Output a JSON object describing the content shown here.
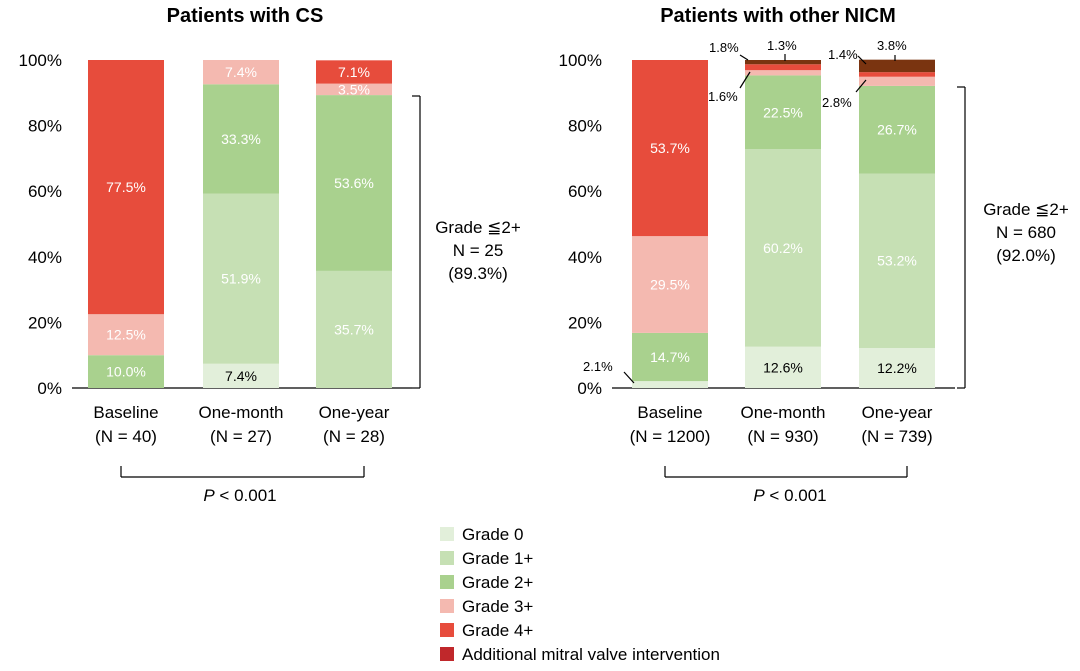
{
  "colors": {
    "grade0": "#e2efda",
    "grade1": "#c6e0b4",
    "grade2": "#a9d18e",
    "grade3": "#f4b9b0",
    "grade4": "#e74c3c",
    "additional": "#c0282b",
    "additional_dark": "#7a3410"
  },
  "legend": [
    {
      "label": "Grade 0",
      "color_key": "grade0"
    },
    {
      "label": "Grade 1+",
      "color_key": "grade1"
    },
    {
      "label": "Grade 2+",
      "color_key": "grade2"
    },
    {
      "label": "Grade 3+",
      "color_key": "grade3"
    },
    {
      "label": "Grade 4+",
      "color_key": "grade4"
    },
    {
      "label": "Additional mitral valve intervention",
      "color_key": "additional"
    }
  ],
  "chart_data": [
    {
      "type": "bar",
      "stacked": true,
      "title": "Patients with CS",
      "ylim": [
        0,
        100
      ],
      "yticks": [
        "0%",
        "20%",
        "40%",
        "60%",
        "80%",
        "100%"
      ],
      "categories": [
        "Baseline",
        "One-month",
        "One-year"
      ],
      "category_n": [
        "(N = 40)",
        "(N = 27)",
        "(N = 28)"
      ],
      "series": [
        {
          "name": "Grade 0",
          "values": [
            0,
            7.4,
            0
          ],
          "labels": [
            "",
            "7.4%",
            ""
          ]
        },
        {
          "name": "Grade 1+",
          "values": [
            0,
            51.9,
            35.7
          ],
          "labels": [
            "",
            "51.9%",
            "35.7%"
          ]
        },
        {
          "name": "Grade 2+",
          "values": [
            10.0,
            33.3,
            53.6
          ],
          "labels": [
            "10.0%",
            "33.3%",
            "53.6%"
          ]
        },
        {
          "name": "Grade 3+",
          "values": [
            12.5,
            7.4,
            3.5
          ],
          "labels": [
            "12.5%",
            "7.4%",
            "3.5%"
          ]
        },
        {
          "name": "Grade 4+",
          "values": [
            77.5,
            0,
            7.1
          ],
          "labels": [
            "77.5%",
            "",
            "7.1%"
          ]
        },
        {
          "name": "Additional mitral valve intervention",
          "values": [
            0,
            0,
            0
          ],
          "labels": [
            "",
            "",
            ""
          ]
        }
      ],
      "bracket_text": [
        "Grade ≦2+",
        "N = 25",
        "(89.3%)"
      ],
      "p_prefix": "P",
      "p_suffix": " < 0.001"
    },
    {
      "type": "bar",
      "stacked": true,
      "title": "Patients with other NICM",
      "ylim": [
        0,
        100
      ],
      "yticks": [
        "0%",
        "20%",
        "40%",
        "60%",
        "80%",
        "100%"
      ],
      "categories": [
        "Baseline",
        "One-month",
        "One-year"
      ],
      "category_n": [
        "(N = 1200)",
        "(N = 930)",
        "(N = 739)"
      ],
      "series": [
        {
          "name": "Grade 0",
          "values": [
            2.1,
            12.6,
            12.2
          ],
          "labels": [
            "",
            "12.6%",
            "12.2%"
          ]
        },
        {
          "name": "Grade 1+",
          "values": [
            0,
            60.2,
            53.2
          ],
          "labels": [
            "",
            "60.2%",
            "53.2%"
          ]
        },
        {
          "name": "Grade 2+",
          "values": [
            14.7,
            22.5,
            26.7
          ],
          "labels": [
            "14.7%",
            "22.5%",
            "26.7%"
          ]
        },
        {
          "name": "Grade 3+",
          "values": [
            29.5,
            1.6,
            2.8
          ],
          "labels": [
            "29.5%",
            "",
            ""
          ]
        },
        {
          "name": "Grade 4+",
          "values": [
            53.7,
            1.8,
            1.4
          ],
          "labels": [
            "53.7%",
            "",
            ""
          ]
        },
        {
          "name": "Additional mitral valve intervention",
          "values": [
            0,
            1.3,
            3.8
          ],
          "labels": [
            "",
            "",
            ""
          ]
        }
      ],
      "callouts": [
        "2.1%",
        "1.8%",
        "1.3%",
        "1.6%",
        "1.4%",
        "3.8%",
        "2.8%"
      ],
      "bracket_text": [
        "Grade ≦2+",
        "N = 680",
        "(92.0%)"
      ],
      "p_prefix": "P",
      "p_suffix": " < 0.001"
    }
  ]
}
